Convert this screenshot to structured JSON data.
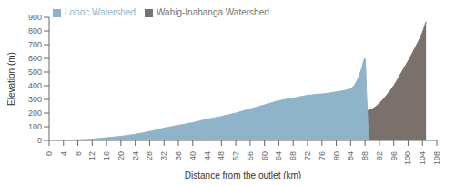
{
  "chart_data": {
    "type": "area",
    "xlabel": "Distance from the outlet (km)",
    "ylabel": "Elevation (m)",
    "xlim": [
      0,
      108
    ],
    "ylim": [
      0,
      900
    ],
    "xticks": [
      0,
      4,
      8,
      12,
      16,
      20,
      24,
      28,
      32,
      36,
      40,
      44,
      48,
      52,
      56,
      60,
      64,
      68,
      72,
      76,
      80,
      84,
      88,
      92,
      96,
      100,
      104,
      108
    ],
    "yticks": [
      0,
      100,
      200,
      300,
      400,
      500,
      600,
      700,
      800,
      900
    ],
    "legend": "upper left",
    "series": [
      {
        "name": "Wahig-Inabanga Watershed",
        "color": "#7a706c",
        "x": [
          0,
          8,
          12,
          16,
          20,
          24,
          28,
          32,
          36,
          40,
          44,
          48,
          52,
          56,
          60,
          64,
          68,
          72,
          76,
          80,
          84,
          88,
          90,
          92,
          94,
          96,
          98,
          100,
          102,
          104,
          105
        ],
        "values": [
          0,
          3,
          5,
          8,
          12,
          18,
          25,
          35,
          45,
          58,
          70,
          85,
          100,
          115,
          130,
          148,
          163,
          175,
          185,
          195,
          205,
          215,
          230,
          270,
          330,
          400,
          490,
          580,
          680,
          790,
          869
        ]
      },
      {
        "name": "Loboc Watershed",
        "color": "#8fb3c8",
        "x": [
          0,
          8,
          12,
          16,
          20,
          24,
          28,
          32,
          36,
          40,
          44,
          48,
          52,
          56,
          60,
          64,
          68,
          72,
          76,
          80,
          84,
          86,
          87,
          88,
          88.5,
          89
        ],
        "values": [
          0,
          5,
          10,
          20,
          30,
          45,
          65,
          90,
          110,
          130,
          155,
          175,
          200,
          230,
          260,
          290,
          310,
          330,
          340,
          355,
          380,
          450,
          520,
          600,
          300,
          0
        ]
      }
    ]
  }
}
